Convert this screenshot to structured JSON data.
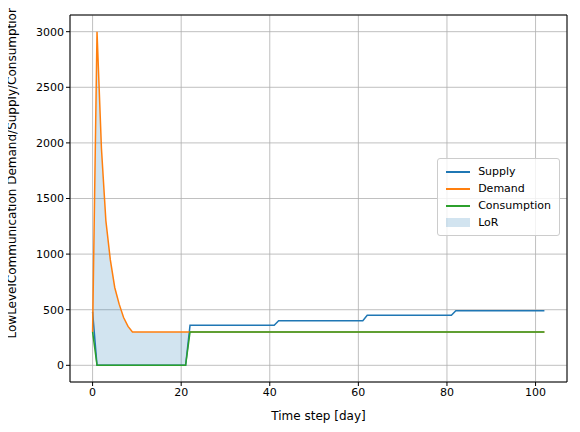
{
  "chart_data": {
    "type": "line",
    "xlabel": "Time step [day]",
    "ylabel": "LowLevelCommunication Demand/Supply/Consumption",
    "x": [
      0,
      1,
      2,
      3,
      4,
      5,
      6,
      7,
      8,
      9,
      10,
      11,
      12,
      13,
      14,
      15,
      16,
      17,
      18,
      19,
      20,
      21,
      22,
      23,
      24,
      25,
      26,
      27,
      28,
      29,
      30,
      31,
      32,
      33,
      34,
      35,
      36,
      37,
      38,
      39,
      40,
      41,
      42,
      43,
      44,
      45,
      46,
      47,
      48,
      49,
      50,
      51,
      52,
      53,
      54,
      55,
      56,
      57,
      58,
      59,
      60,
      61,
      62,
      63,
      64,
      65,
      66,
      67,
      68,
      69,
      70,
      71,
      72,
      73,
      74,
      75,
      76,
      77,
      78,
      79,
      80,
      81,
      82,
      83,
      84,
      85,
      86,
      87,
      88,
      89,
      90,
      91,
      92,
      93,
      94,
      95,
      96,
      97,
      98,
      99,
      100,
      101,
      102
    ],
    "xlim": [
      -5.1,
      107.1
    ],
    "ylim": [
      -150,
      3150
    ],
    "xticks": [
      0,
      20,
      40,
      60,
      80,
      100
    ],
    "yticks": [
      0,
      500,
      1000,
      1500,
      2000,
      2500,
      3000
    ],
    "grid": true,
    "legend": "center right",
    "series": [
      {
        "name": "Supply",
        "color": "#1f77b4",
        "values": [
          480,
          0,
          0,
          0,
          0,
          0,
          0,
          0,
          0,
          0,
          0,
          0,
          0,
          0,
          0,
          0,
          0,
          0,
          0,
          0,
          0,
          0,
          360,
          360,
          360,
          360,
          360,
          360,
          360,
          360,
          360,
          360,
          360,
          360,
          360,
          360,
          360,
          360,
          360,
          360,
          360,
          360,
          400,
          400,
          400,
          400,
          400,
          400,
          400,
          400,
          400,
          400,
          400,
          400,
          400,
          400,
          400,
          400,
          400,
          400,
          400,
          400,
          450,
          450,
          450,
          450,
          450,
          450,
          450,
          450,
          450,
          450,
          450,
          450,
          450,
          450,
          450,
          450,
          450,
          450,
          450,
          450,
          490,
          490,
          490,
          490,
          490,
          490,
          490,
          490,
          490,
          490,
          490,
          490,
          490,
          490,
          490,
          490,
          490,
          490,
          490,
          490,
          490
        ]
      },
      {
        "name": "Demand",
        "color": "#ff7f0e",
        "values": [
          300,
          3000,
          1950,
          1300,
          950,
          700,
          550,
          430,
          350,
          300,
          300,
          300,
          300,
          300,
          300,
          300,
          300,
          300,
          300,
          300,
          300,
          300,
          300,
          300,
          300,
          300,
          300,
          300,
          300,
          300,
          300,
          300,
          300,
          300,
          300,
          300,
          300,
          300,
          300,
          300,
          300,
          300,
          300,
          300,
          300,
          300,
          300,
          300,
          300,
          300,
          300,
          300,
          300,
          300,
          300,
          300,
          300,
          300,
          300,
          300,
          300,
          300,
          300,
          300,
          300,
          300,
          300,
          300,
          300,
          300,
          300,
          300,
          300,
          300,
          300,
          300,
          300,
          300,
          300,
          300,
          300,
          300,
          300,
          300,
          300,
          300,
          300,
          300,
          300,
          300,
          300,
          300,
          300,
          300,
          300,
          300,
          300,
          300,
          300,
          300,
          300,
          300,
          300
        ]
      },
      {
        "name": "Consumption",
        "color": "#2ca02c",
        "values": [
          300,
          0,
          0,
          0,
          0,
          0,
          0,
          0,
          0,
          0,
          0,
          0,
          0,
          0,
          0,
          0,
          0,
          0,
          0,
          0,
          0,
          0,
          300,
          300,
          300,
          300,
          300,
          300,
          300,
          300,
          300,
          300,
          300,
          300,
          300,
          300,
          300,
          300,
          300,
          300,
          300,
          300,
          300,
          300,
          300,
          300,
          300,
          300,
          300,
          300,
          300,
          300,
          300,
          300,
          300,
          300,
          300,
          300,
          300,
          300,
          300,
          300,
          300,
          300,
          300,
          300,
          300,
          300,
          300,
          300,
          300,
          300,
          300,
          300,
          300,
          300,
          300,
          300,
          300,
          300,
          300,
          300,
          300,
          300,
          300,
          300,
          300,
          300,
          300,
          300,
          300,
          300,
          300,
          300,
          300,
          300,
          300,
          300,
          300,
          300,
          300,
          300,
          300
        ]
      },
      {
        "name": "LoR",
        "type": "area",
        "color": "#1f77b4",
        "between": [
          "Consumption",
          "Demand"
        ]
      }
    ]
  }
}
